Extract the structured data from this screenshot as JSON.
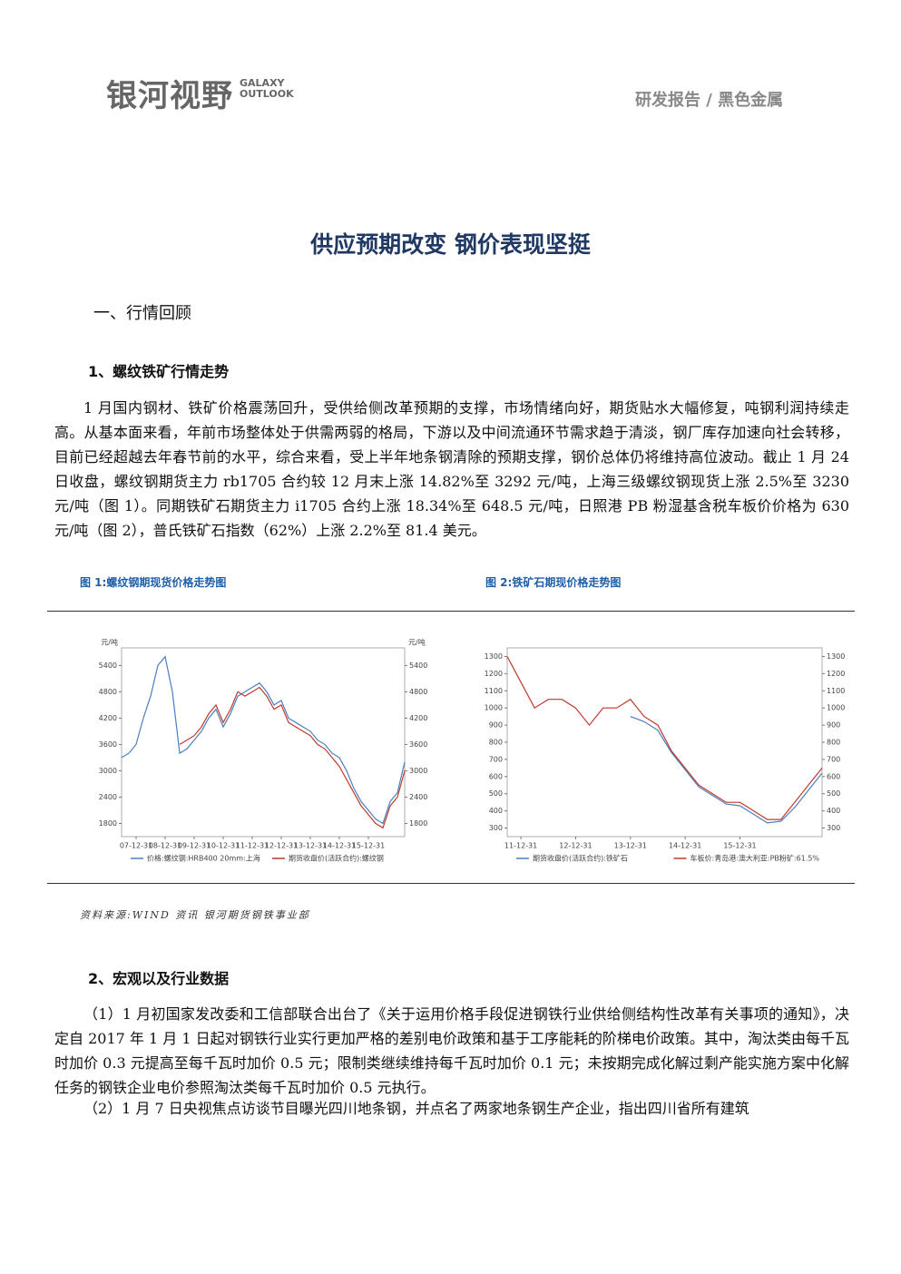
{
  "header": {
    "logo_cn": "银河视野",
    "logo_en": [
      "GALAXY",
      "OUTLOOK"
    ],
    "section": "研发报告 / 黑色金属"
  },
  "title": "供应预期改变 钢价表现坚挺",
  "part1": {
    "heading": "一、行情回顾",
    "sub1": {
      "heading": "1、螺纹铁矿行情走势",
      "paragraph": "1 月国内钢材、铁矿价格震荡回升，受供给侧改革预期的支撑，市场情绪向好，期货贴水大幅修复，吨钢利润持续走高。从基本面来看，年前市场整体处于供需两弱的格局，下游以及中间流通环节需求趋于清淡，钢厂库存加速向社会转移，目前已经超越去年春节前的水平，综合来看，受上半年地条钢清除的预期支撑，钢价总体仍将维持高位波动。截止 1 月 24 日收盘，螺纹钢期货主力 rb1705 合约较 12 月末上涨 14.82%至 3292 元/吨，上海三级螺纹钢现货上涨 2.5%至 3230 元/吨（图 1）。同期铁矿石期货主力 i1705 合约上涨 18.34%至 648.5 元/吨，日照港 PB 粉湿基含税车板价价格为 630 元/吨（图 2），普氏铁矿石指数（62%）上涨 2.2%至 81.4 美元。"
    },
    "figure_captions": [
      "图 1:螺纹钢期现货价格走势图",
      "图 2:铁矿石期现价格走势图"
    ],
    "source": "资料来源:WIND 资讯  银河期货钢铁事业部",
    "sub2": {
      "heading": "2、宏观以及行业数据",
      "paragraphs": [
        "（1）1 月初国家发改委和工信部联合出台了《关于运用价格手段促进钢铁行业供给侧结构性改革有关事项的通知》，决定自 2017 年 1 月 1 日起对钢铁行业实行更加严格的差别电价政策和基于工序能耗的阶梯电价政策。其中，淘汰类由每千瓦时加价 0.3 元提高至每千瓦时加价 0.5 元；限制类继续维持每千瓦时加价 0.1 元；未按期完成化解过剩产能实施方案中化解任务的钢铁企业电价参照淘汰类每千瓦时加价 0.5 元执行。",
        "（2）1 月 7 日央视焦点访谈节目曝光四川地条钢，并点名了两家地条钢生产企业，指出四川省所有建筑"
      ]
    }
  },
  "chart_data": [
    {
      "type": "line",
      "y_label": "元/吨",
      "y2_label": "元/吨",
      "xlim": [
        0,
        39
      ],
      "ylim": [
        1500,
        5800
      ],
      "yticks": [
        1800,
        2400,
        3000,
        3600,
        4200,
        4800,
        5400
      ],
      "y2lim": [
        1500,
        5800
      ],
      "y2ticks": [
        1800,
        2400,
        3000,
        3600,
        4200,
        4800,
        5400
      ],
      "xticks": [
        {
          "value": 2,
          "label": "07-12-31"
        },
        {
          "value": 6,
          "label": "08-12-31"
        },
        {
          "value": 10,
          "label": "09-12-31"
        },
        {
          "value": 14,
          "label": "10-12-31"
        },
        {
          "value": 18,
          "label": "11-12-31"
        },
        {
          "value": 22,
          "label": "12-12-31"
        },
        {
          "value": 26,
          "label": "13-12-31"
        },
        {
          "value": 30,
          "label": "14-12-31"
        },
        {
          "value": 34,
          "label": "15-12-31"
        }
      ],
      "series": [
        {
          "name": "价格:螺纹钢:HRB400 20mm:上海",
          "color": "#4a7fc1",
          "values": [
            3300,
            3400,
            3600,
            4200,
            4700,
            5400,
            5600,
            4800,
            3400,
            3500,
            3700,
            3900,
            4200,
            4400,
            4000,
            4300,
            4700,
            4800,
            4900,
            5000,
            4800,
            4500,
            4600,
            4200,
            4100,
            4000,
            3900,
            3700,
            3600,
            3400,
            3300,
            3000,
            2600,
            2300,
            2100,
            1900,
            1800,
            2300,
            2500,
            3200
          ]
        },
        {
          "name": "期货收盘价(活跃合约):螺纹钢",
          "color": "#c0392b",
          "values": [
            null,
            null,
            null,
            null,
            null,
            null,
            null,
            null,
            3600,
            3700,
            3800,
            4000,
            4300,
            4500,
            4100,
            4400,
            4800,
            4700,
            4800,
            4900,
            4700,
            4400,
            4500,
            4100,
            4000,
            3900,
            3800,
            3600,
            3500,
            3300,
            3100,
            2800,
            2500,
            2200,
            2000,
            1800,
            1700,
            2200,
            2400,
            3000
          ]
        }
      ]
    },
    {
      "type": "line",
      "xlim": [
        0,
        23
      ],
      "ylim": [
        250,
        1350
      ],
      "yticks": [
        300,
        400,
        500,
        600,
        700,
        800,
        900,
        1000,
        1100,
        1200,
        1300
      ],
      "y2lim": [
        250,
        1350
      ],
      "y2ticks": [
        300,
        400,
        500,
        600,
        700,
        800,
        900,
        1000,
        1100,
        1200,
        1300
      ],
      "xticks": [
        {
          "value": 1,
          "label": "11-12-31"
        },
        {
          "value": 5,
          "label": "12-12-31"
        },
        {
          "value": 9,
          "label": "13-12-31"
        },
        {
          "value": 13,
          "label": "14-12-31"
        },
        {
          "value": 17,
          "label": "15-12-31"
        }
      ],
      "series": [
        {
          "name": "期货收盘价(活跃合约):铁矿石",
          "color": "#4a7fc1",
          "values": [
            null,
            null,
            null,
            null,
            null,
            null,
            null,
            null,
            null,
            950,
            920,
            870,
            740,
            640,
            540,
            490,
            440,
            430,
            380,
            330,
            340,
            420,
            520,
            620
          ]
        },
        {
          "name": "车板价:青岛港:澳大利亚:PB粉矿:61.5%",
          "color": "#c0392b",
          "values": [
            1300,
            1150,
            1000,
            1050,
            1050,
            1000,
            900,
            1000,
            1000,
            1050,
            950,
            900,
            750,
            650,
            550,
            500,
            450,
            450,
            400,
            350,
            350,
            450,
            550,
            650
          ]
        }
      ]
    }
  ]
}
